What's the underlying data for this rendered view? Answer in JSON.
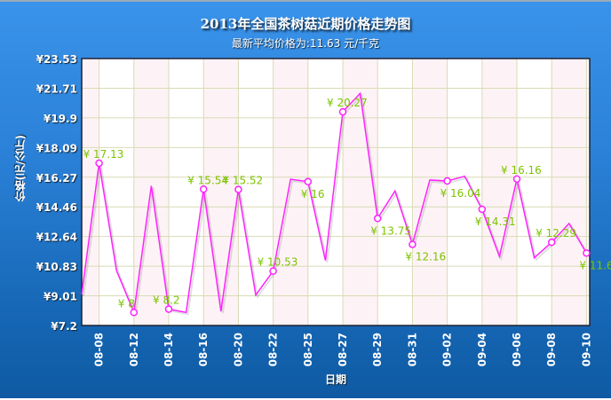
{
  "chart_data": {
    "type": "line",
    "title": "2013年全国茶树菇近期价格走势图",
    "subtitle": "最新平均价格为:11.63 元/千克",
    "xlabel": "日期",
    "ylabel": "价格(元/公斤)",
    "currency_prefix": "¥",
    "ylim": [
      7.2,
      23.53
    ],
    "y_ticks": [
      "¥7.2",
      "¥9.01",
      "¥10.83",
      "¥12.64",
      "¥14.46",
      "¥16.27",
      "¥18.09",
      "¥19.9",
      "¥21.71",
      "¥23.53"
    ],
    "x_tick_labels": [
      "",
      "08-08",
      "",
      "08-12",
      "",
      "08-14",
      "",
      "08-16",
      "",
      "08-20",
      "",
      "08-22",
      "",
      "08-25",
      "",
      "08-27",
      "",
      "08-29",
      "",
      "08-31",
      "",
      "09-02",
      "",
      "09-04",
      "",
      "09-06",
      "",
      "09-08",
      "",
      "09-10"
    ],
    "values": [
      9.1,
      17.13,
      10.56,
      8,
      15.74,
      8.2,
      8.0,
      15.54,
      8.07,
      15.52,
      9.06,
      10.53,
      16.15,
      16,
      11.18,
      20.27,
      21.4,
      13.75,
      15.43,
      12.16,
      16.1,
      16.04,
      16.33,
      14.31,
      11.42,
      16.16,
      11.34,
      12.29,
      13.44,
      11.63
    ],
    "labeled_points": [
      1,
      3,
      5,
      7,
      9,
      11,
      13,
      15,
      17,
      19,
      21,
      23,
      25,
      27,
      29
    ],
    "grid": true,
    "colors": {
      "line": "#ff22ff",
      "data_label": "#7dc300",
      "grid": "#d8dbb4",
      "band": "#fdf3f6",
      "background": "#2a80d6"
    }
  }
}
